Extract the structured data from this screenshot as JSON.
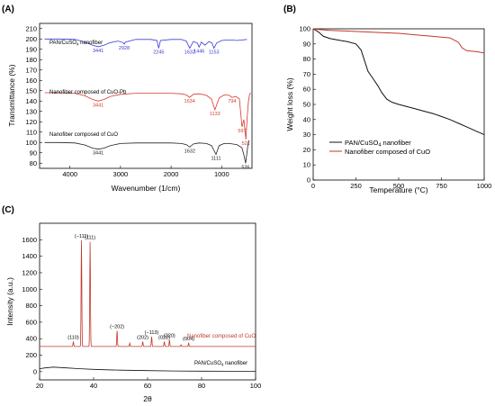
{
  "chart_data": [
    {
      "panel_label": "(A)",
      "type": "line",
      "xlabel": "Wavenumber (1/cm)",
      "ylabel": "Transmittance (%)",
      "xlim": [
        4600,
        400
      ],
      "ylim": [
        75,
        215
      ],
      "x_ticks": [
        4000,
        3000,
        2000,
        1000
      ],
      "y_ticks": [
        80,
        90,
        100,
        110,
        120,
        130,
        140,
        150,
        160,
        170,
        180,
        190,
        200,
        210
      ],
      "series": [
        {
          "name": "PAN/CuSO4 nanofiber",
          "color": "#3a3ad6",
          "x": [
            4500,
            4200,
            3900,
            3700,
            3550,
            3441,
            3330,
            3200,
            3050,
            2950,
            2928,
            2900,
            2700,
            2400,
            2280,
            2245,
            2210,
            2000,
            1800,
            1700,
            1632,
            1560,
            1480,
            1446,
            1400,
            1330,
            1250,
            1190,
            1153,
            1100,
            1000,
            900,
            800,
            700,
            600,
            500
          ],
          "y": [
            200,
            200,
            199.5,
            197,
            194,
            192.5,
            194,
            196.5,
            198,
            196.5,
            195,
            197,
            199.5,
            199.5,
            198.5,
            191,
            198.5,
            199.5,
            199.5,
            198,
            191,
            197.5,
            196,
            192,
            197,
            194,
            197.5,
            196,
            191,
            196,
            198.5,
            199,
            199,
            198.5,
            199,
            199.5
          ],
          "labels": [
            {
              "x": 3441,
              "text": "3441"
            },
            {
              "x": 2928,
              "text": "2928"
            },
            {
              "x": 2245,
              "text": "2245"
            },
            {
              "x": 1632,
              "text": "1632"
            },
            {
              "x": 1446,
              "text": "1446"
            },
            {
              "x": 1153,
              "text": "1153"
            }
          ]
        },
        {
          "name": "Nanofiber composed of CuO-Pb",
          "color": "#d63a2e",
          "x": [
            4500,
            4200,
            3900,
            3700,
            3550,
            3441,
            3330,
            3200,
            3000,
            2700,
            2400,
            2000,
            1800,
            1700,
            1634,
            1560,
            1450,
            1300,
            1200,
            1133,
            1050,
            950,
            850,
            794,
            720,
            650,
            597,
            560,
            521,
            495,
            470,
            450,
            430
          ],
          "y": [
            148,
            148,
            147.5,
            145,
            141.5,
            140,
            141.5,
            144.5,
            146.5,
            147.5,
            147.5,
            147.5,
            147,
            146,
            143.5,
            146.5,
            147,
            145.5,
            142,
            131.5,
            143,
            146,
            145.5,
            143.5,
            144.5,
            142,
            115,
            122,
            103,
            125,
            140,
            146,
            148
          ],
          "labels": [
            {
              "x": 3441,
              "text": "3441"
            },
            {
              "x": 1634,
              "text": "1634"
            },
            {
              "x": 1133,
              "text": "1133"
            },
            {
              "x": 794,
              "text": "794"
            },
            {
              "x": 597,
              "text": "597"
            },
            {
              "x": 521,
              "text": "521"
            }
          ]
        },
        {
          "name": "Nanofiber composed of CuO",
          "color": "#222222",
          "x": [
            4500,
            4200,
            3900,
            3700,
            3550,
            3441,
            3330,
            3200,
            3000,
            2700,
            2400,
            2000,
            1800,
            1700,
            1632,
            1560,
            1450,
            1300,
            1200,
            1111,
            1050,
            950,
            850,
            700,
            600,
            560,
            526,
            500,
            480,
            460
          ],
          "y": [
            100,
            100,
            99.5,
            97.5,
            94.5,
            93.5,
            94.5,
            97,
            99,
            99.5,
            99.5,
            99.5,
            99,
            98,
            95.5,
            98.5,
            99.5,
            99,
            97,
            88.5,
            97,
            99,
            99,
            98,
            95,
            88,
            80,
            90,
            98,
            102
          ],
          "labels": [
            {
              "x": 3441,
              "text": "3441"
            },
            {
              "x": 1632,
              "text": "1632"
            },
            {
              "x": 1111,
              "text": "1111"
            },
            {
              "x": 526,
              "text": "526"
            }
          ]
        }
      ]
    },
    {
      "panel_label": "(B)",
      "type": "line",
      "xlabel": "Temperature (°C)",
      "ylabel": "Weight loss (%)",
      "xlim": [
        0,
        1000
      ],
      "ylim": [
        0,
        100
      ],
      "x_ticks": [
        0,
        250,
        500,
        750,
        1000
      ],
      "y_ticks": [
        0,
        10,
        20,
        30,
        40,
        50,
        60,
        70,
        80,
        90,
        100
      ],
      "legend_position": "bottom-left",
      "series": [
        {
          "name": "PAN/CuSO4 nanofiber",
          "color": "#111111",
          "x": [
            0,
            30,
            60,
            100,
            150,
            200,
            250,
            280,
            300,
            320,
            350,
            380,
            400,
            430,
            460,
            500,
            550,
            600,
            650,
            700,
            750,
            800,
            850,
            900,
            950,
            1000
          ],
          "y": [
            100,
            98,
            95,
            93.5,
            92.5,
            91.5,
            90,
            86,
            79,
            72,
            67,
            62,
            58,
            53.5,
            51.5,
            50,
            48.5,
            47,
            45.5,
            44,
            42,
            40,
            37.5,
            35,
            32.5,
            30
          ]
        },
        {
          "name": "Nanofiber composed of CuO",
          "color": "#c0392b",
          "x": [
            0,
            30,
            100,
            200,
            300,
            400,
            500,
            600,
            700,
            750,
            800,
            850,
            870,
            890,
            900,
            950,
            1000
          ],
          "y": [
            100,
            99.5,
            99,
            98.5,
            98,
            97.5,
            97,
            96,
            95,
            94.5,
            94,
            91,
            87.5,
            86,
            85.5,
            85,
            84
          ]
        }
      ]
    },
    {
      "panel_label": "(C)",
      "type": "line",
      "xlabel": "2θ",
      "ylabel": "Intensity (a.u.)",
      "xlim": [
        20,
        100
      ],
      "ylim": [
        -100,
        1800
      ],
      "x_ticks": [
        20,
        40,
        60,
        80,
        100
      ],
      "y_ticks": [
        0,
        200,
        400,
        600,
        800,
        1000,
        1200,
        1400,
        1600
      ],
      "series": [
        {
          "name": "Nanofiber composed of CuO",
          "color": "#c0392b",
          "baseline": 305,
          "peaks": [
            {
              "x": 32.5,
              "height": 60
            },
            {
              "x": 35.5,
              "height": 1290
            },
            {
              "x": 38.7,
              "height": 1270
            },
            {
              "x": 48.7,
              "height": 190
            },
            {
              "x": 53.4,
              "height": 40
            },
            {
              "x": 58.2,
              "height": 60
            },
            {
              "x": 61.5,
              "height": 120
            },
            {
              "x": 66.2,
              "height": 60
            },
            {
              "x": 68.1,
              "height": 80
            },
            {
              "x": 72.4,
              "height": 20
            },
            {
              "x": 75.2,
              "height": 40
            }
          ],
          "labels": [
            {
              "x": 32.5,
              "text": "(110)"
            },
            {
              "x": 35.5,
              "text": "(−111)"
            },
            {
              "x": 38.7,
              "text": "(111)"
            },
            {
              "x": 48.7,
              "text": "(−202)"
            },
            {
              "x": 58.2,
              "text": "(202)"
            },
            {
              "x": 61.5,
              "text": "(−113)"
            },
            {
              "x": 66.2,
              "text": "(022)"
            },
            {
              "x": 68.1,
              "text": "(220)"
            },
            {
              "x": 75.2,
              "text": "(004)"
            }
          ]
        },
        {
          "name": "PAN/CuSO4 nanofiber",
          "color": "#111111",
          "x": [
            20,
            22,
            25,
            28,
            30,
            35,
            40,
            45,
            50,
            60,
            70,
            80,
            90,
            100
          ],
          "y": [
            35,
            45,
            55,
            50,
            45,
            35,
            28,
            22,
            18,
            12,
            8,
            6,
            5,
            5
          ]
        }
      ]
    }
  ],
  "texts": {
    "a_series1": "PAN/CuSO",
    "a_series1_sub": "4",
    "a_series1_tail": " nanofiber",
    "a_series2": "Nanofiber composed of CuO-Pb",
    "a_series3": "Nanofiber composed of CuO",
    "b_leg1": "PAN/CuSO",
    "b_leg1_sub": "4",
    "b_leg1_tail": " nanofiber",
    "b_leg2": "Nanofiber composed of CuO",
    "c_series1": "Nanofiber composed of CuO",
    "c_series2": "PAN/CuSO",
    "c_series2_sub": "4",
    "c_series2_tail": " nanofiber"
  }
}
